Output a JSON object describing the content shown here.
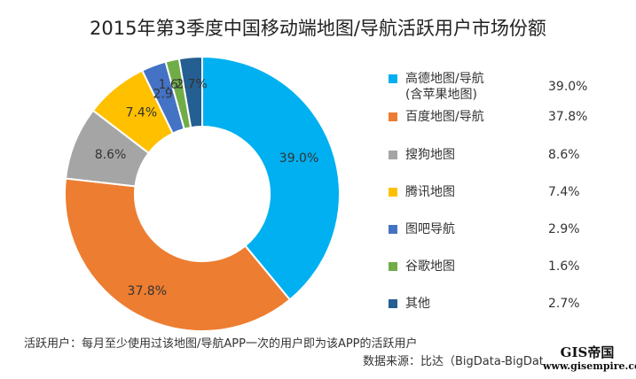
{
  "chart_data": {
    "type": "pie",
    "variant": "donut",
    "title": "2015年第3季度中国移动端地图/导航活跃用户市场份额",
    "categories": [
      "高德地图/导航",
      "百度地图/导航",
      "搜狗地图",
      "腾讯地图",
      "图吧导航",
      "谷歌地图",
      "其他"
    ],
    "legend_sub": [
      "(含苹果地图)",
      "",
      "",
      "",
      "",
      "",
      ""
    ],
    "values": [
      39.0,
      37.8,
      8.6,
      7.4,
      2.9,
      1.6,
      2.7
    ],
    "labels": [
      "39.0%",
      "37.8%",
      "8.6%",
      "7.4%",
      "2.9%",
      "1.6%",
      "2.7%"
    ],
    "colors": [
      "#00b0f0",
      "#ed7d31",
      "#a5a5a5",
      "#ffc000",
      "#4472c4",
      "#70ad47",
      "#255e91"
    ],
    "legend_position": "right"
  },
  "footnote": "活跃用户：每月至少使用过该地图/导航APP一次的用户即为该APP的活跃用户",
  "source": "数据来源：比达（BigData-BigData Research）",
  "watermark": {
    "top": "GIS帝国",
    "bottom": "www.gisempire.com"
  }
}
